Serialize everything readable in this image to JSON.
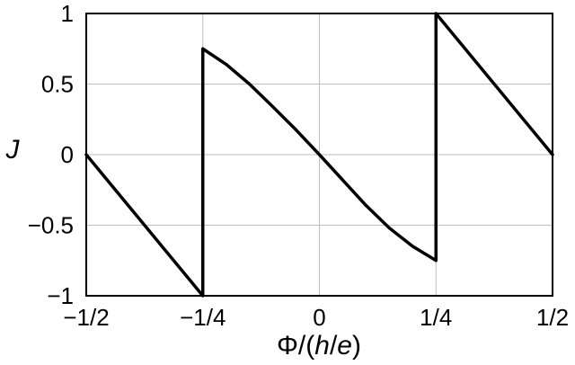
{
  "chart_data": {
    "type": "line",
    "title": "",
    "xlabel_parts": {
      "prefix": "Φ/(",
      "italic1": "h",
      "sep": "/",
      "italic2": "e",
      "suffix": ")"
    },
    "ylabel": "J",
    "xlim": [
      -0.5,
      0.5
    ],
    "ylim": [
      -1,
      1
    ],
    "grid": true,
    "x_ticks": [
      {
        "value": -0.5,
        "label": "−1/2"
      },
      {
        "value": -0.25,
        "label": "−1/4"
      },
      {
        "value": 0,
        "label": "0"
      },
      {
        "value": 0.25,
        "label": "1/4"
      },
      {
        "value": 0.5,
        "label": "1/2"
      }
    ],
    "y_ticks": [
      {
        "value": 1,
        "label": "1"
      },
      {
        "value": 0.5,
        "label": "0.5"
      },
      {
        "value": 0,
        "label": "0"
      },
      {
        "value": -0.5,
        "label": "−0.5"
      },
      {
        "value": -1,
        "label": "−1"
      }
    ],
    "series": [
      {
        "color": "#000000",
        "points": [
          [
            -0.5,
            0.0
          ],
          [
            -0.25,
            -1.0
          ],
          [
            -0.25,
            0.75
          ],
          [
            -0.2,
            0.64
          ],
          [
            -0.15,
            0.5
          ],
          [
            -0.1,
            0.34
          ],
          [
            -0.05,
            0.175
          ],
          [
            0.0,
            0.0
          ],
          [
            0.05,
            -0.18
          ],
          [
            0.1,
            -0.36
          ],
          [
            0.15,
            -0.52
          ],
          [
            0.2,
            -0.65
          ],
          [
            0.25,
            -0.75
          ],
          [
            0.25,
            1.0
          ],
          [
            0.5,
            0.0
          ]
        ]
      }
    ]
  }
}
